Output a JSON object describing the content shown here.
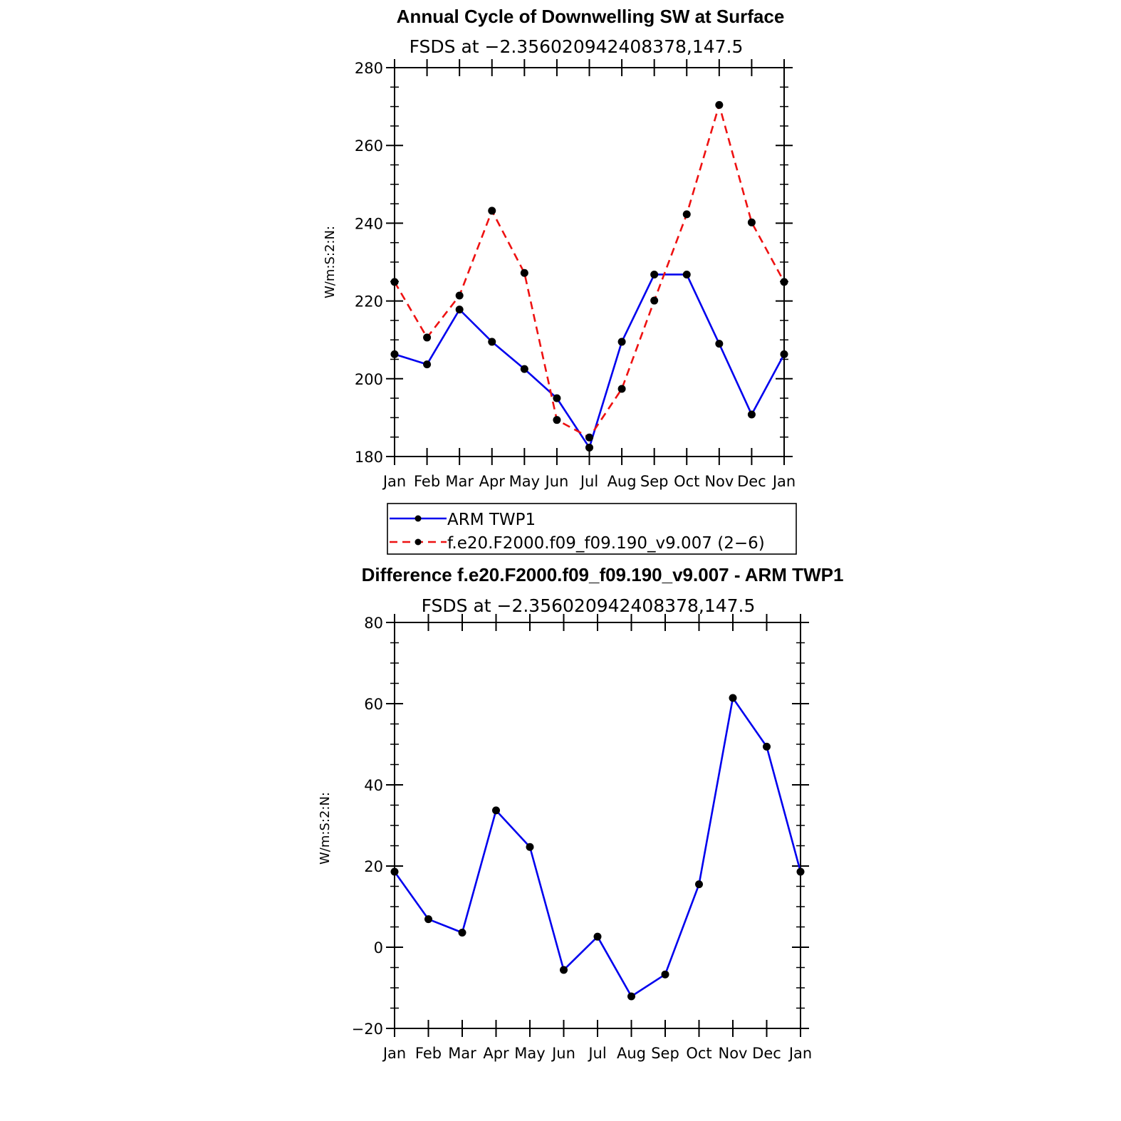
{
  "chart_data": [
    {
      "type": "line",
      "title": "Annual Cycle of Downwelling SW at Surface",
      "subtitle": "FSDS at −2.356020942408378,147.5",
      "ylabel": "W/m:S:2:N:",
      "ylim": [
        180,
        280
      ],
      "yticks": [
        "180",
        "200",
        "220",
        "240",
        "260",
        "280"
      ],
      "categories": [
        "Jan",
        "Feb",
        "Mar",
        "Apr",
        "May",
        "Jun",
        "Jul",
        "Aug",
        "Sep",
        "Oct",
        "Nov",
        "Dec",
        "Jan"
      ],
      "series": [
        {
          "name": "ARM TWP1",
          "color": "#0000ee",
          "dash": "solid",
          "values": [
            206.3,
            203.7,
            217.8,
            209.5,
            202.5,
            195.0,
            182.3,
            209.5,
            226.8,
            226.8,
            209.0,
            190.8,
            206.3
          ]
        },
        {
          "name": "f.e20.F2000.f09_f09.190_v9.007 (2−6)",
          "color": "#ee1111",
          "dash": "dashed",
          "values": [
            224.9,
            210.6,
            221.4,
            243.2,
            227.2,
            189.4,
            184.9,
            197.4,
            220.1,
            242.3,
            270.4,
            240.2,
            224.9
          ]
        }
      ],
      "legend": "below"
    },
    {
      "type": "line",
      "title": "Difference f.e20.F2000.f09_f09.190_v9.007 - ARM TWP1",
      "subtitle": "FSDS at −2.356020942408378,147.5",
      "ylabel": "W/m:S:2:N:",
      "ylim": [
        -20,
        80
      ],
      "yticks": [
        "−20",
        "0",
        "20",
        "40",
        "60",
        "80"
      ],
      "categories": [
        "Jan",
        "Feb",
        "Mar",
        "Apr",
        "May",
        "Jun",
        "Jul",
        "Aug",
        "Sep",
        "Oct",
        "Nov",
        "Dec",
        "Jan"
      ],
      "series": [
        {
          "name": "Difference",
          "color": "#0000ee",
          "dash": "solid",
          "values": [
            18.6,
            6.9,
            3.6,
            33.7,
            24.7,
            -5.6,
            2.6,
            -12.1,
            -6.7,
            15.5,
            61.4,
            49.4,
            18.6
          ]
        }
      ]
    }
  ]
}
